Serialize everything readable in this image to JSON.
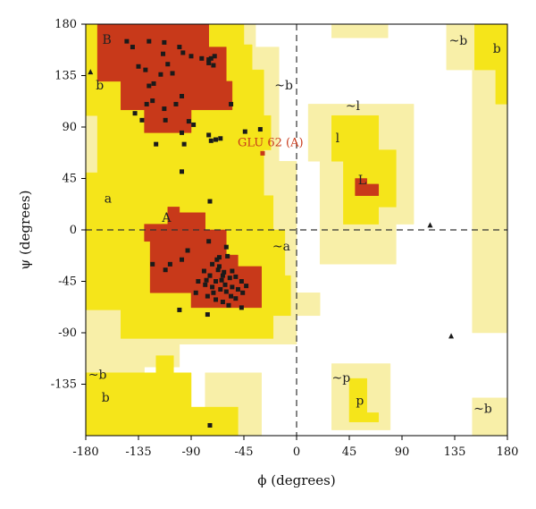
{
  "chart_data": {
    "type": "scatter",
    "title": "",
    "xlabel": "ϕ (degrees)",
    "ylabel": "ψ (degrees)",
    "xlim": [
      -180,
      180
    ],
    "ylim": [
      -180,
      180
    ],
    "xticks": [
      -180,
      -135,
      -90,
      -45,
      0,
      45,
      90,
      135,
      180
    ],
    "yticks": [
      -135,
      -90,
      -45,
      0,
      45,
      90,
      135,
      180
    ],
    "grid": false,
    "reference_lines": {
      "x": 0,
      "y": 0,
      "style": "dashed"
    },
    "colors": {
      "most_favoured": "#c8391a",
      "additional_allowed": "#f5e51a",
      "generously_allowed": "#f8efa8",
      "residue": "#1a1a1a",
      "outlier_label": "#c8391a"
    },
    "region_labels": [
      {
        "text": "B",
        "phi": -162,
        "psi": 166
      },
      {
        "text": "b",
        "phi": -168,
        "psi": 126
      },
      {
        "text": "a",
        "phi": -161,
        "psi": 27
      },
      {
        "text": "A",
        "phi": -111,
        "psi": 10
      },
      {
        "text": "~b",
        "phi": -11,
        "psi": 126
      },
      {
        "text": "~a",
        "phi": -13,
        "psi": -15
      },
      {
        "text": "~l",
        "phi": 48,
        "psi": 108
      },
      {
        "text": "l",
        "phi": 35,
        "psi": 80
      },
      {
        "text": "L",
        "phi": 56,
        "psi": 43
      },
      {
        "text": "~b",
        "phi": 138,
        "psi": 165
      },
      {
        "text": "b",
        "phi": 171,
        "psi": 158
      },
      {
        "text": "~b",
        "phi": -170,
        "psi": -127
      },
      {
        "text": "b",
        "phi": -163,
        "psi": -147
      },
      {
        "text": "~p",
        "phi": 38,
        "psi": -130
      },
      {
        "text": "p",
        "phi": 54,
        "psi": -150
      },
      {
        "text": "~b",
        "phi": 159,
        "psi": -157
      }
    ],
    "annotations": [
      {
        "text": "GLU 62 (A)",
        "phi": -29,
        "psi": 67
      }
    ],
    "series": [
      {
        "marker": "square",
        "points": [
          [
            -145,
            165
          ],
          [
            -140,
            160
          ],
          [
            -126,
            165
          ],
          [
            -113,
            164
          ],
          [
            -100,
            160
          ],
          [
            -135,
            143
          ],
          [
            -129,
            140
          ],
          [
            -114,
            154
          ],
          [
            -110,
            145
          ],
          [
            -97,
            155
          ],
          [
            -90,
            152
          ],
          [
            -81,
            150
          ],
          [
            -75,
            146
          ],
          [
            -71,
            144
          ],
          [
            -75,
            149
          ],
          [
            -70,
            152
          ],
          [
            -73,
            150
          ],
          [
            -122,
            128
          ],
          [
            -126,
            126
          ],
          [
            -116,
            136
          ],
          [
            -106,
            137
          ],
          [
            -98,
            117
          ],
          [
            -103,
            110
          ],
          [
            -113,
            106
          ],
          [
            -128,
            110
          ],
          [
            -138,
            102
          ],
          [
            -132,
            96
          ],
          [
            -112,
            96
          ],
          [
            -92,
            95
          ],
          [
            -88,
            92
          ],
          [
            -123,
            113
          ],
          [
            -120,
            75
          ],
          [
            -98,
            85
          ],
          [
            -75,
            83
          ],
          [
            -73,
            78
          ],
          [
            -69,
            79
          ],
          [
            -65,
            80
          ],
          [
            -56,
            110
          ],
          [
            -44,
            86
          ],
          [
            -31,
            88
          ],
          [
            -123,
            -30
          ],
          [
            -108,
            -30
          ],
          [
            -98,
            -26
          ],
          [
            -93,
            -18
          ],
          [
            -75,
            -10
          ],
          [
            -60,
            -15
          ],
          [
            -59,
            -23
          ],
          [
            -66,
            -24
          ],
          [
            -72,
            -30
          ],
          [
            -67,
            -35
          ],
          [
            -62,
            -37
          ],
          [
            -55,
            -36
          ],
          [
            -79,
            -36
          ],
          [
            -74,
            -40
          ],
          [
            -69,
            -45
          ],
          [
            -64,
            -44
          ],
          [
            -57,
            -42
          ],
          [
            -52,
            -41
          ],
          [
            -47,
            -45
          ],
          [
            -43,
            -49
          ],
          [
            -78,
            -48
          ],
          [
            -72,
            -50
          ],
          [
            -65,
            -52
          ],
          [
            -60,
            -54
          ],
          [
            -55,
            -50
          ],
          [
            -50,
            -52
          ],
          [
            -46,
            -55
          ],
          [
            -84,
            -45
          ],
          [
            -76,
            -58
          ],
          [
            -69,
            -61
          ],
          [
            -63,
            -63
          ],
          [
            -58,
            -66
          ],
          [
            -52,
            -60
          ],
          [
            -66,
            -32
          ],
          [
            -71,
            -55
          ],
          [
            -61,
            -48
          ],
          [
            -56,
            -58
          ],
          [
            -86,
            -55
          ],
          [
            -100,
            -70
          ],
          [
            -76,
            -74
          ],
          [
            -112,
            -35
          ],
          [
            -74,
            -40
          ],
          [
            -77,
            -44
          ],
          [
            -68,
            -26
          ],
          [
            -47,
            -68
          ],
          [
            -74,
            -171
          ],
          [
            -74,
            25
          ],
          [
            -98,
            51
          ],
          [
            -96,
            75
          ],
          [
            -63,
            -40
          ]
        ]
      },
      {
        "name": "GLU 62 (A)",
        "marker": "square",
        "points": [
          [
            -29,
            67
          ]
        ]
      },
      {
        "marker": "triangle",
        "points": [
          [
            -176,
            138
          ],
          [
            114,
            4
          ],
          [
            132,
            -93
          ]
        ]
      }
    ]
  }
}
